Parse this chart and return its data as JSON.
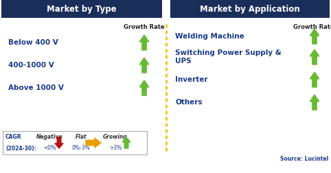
{
  "left_header": "Market by Type",
  "right_header": "Market by Application",
  "left_items": [
    "Below 400 V",
    "400-1000 V",
    "Above 1000 V"
  ],
  "right_items": [
    "Welding Machine",
    "Switching Power Supply &\nUPS",
    "Inverter",
    "Others"
  ],
  "growth_rate_label": "Growth Rate",
  "header_bg_color": "#1a2e5a",
  "header_text_color": "#ffffff",
  "item_text_color": "#1a3a8a",
  "up_arrow_color": "#66bb33",
  "down_arrow_color": "#bb1111",
  "flat_arrow_color": "#e8a000",
  "dashed_line_color": "#f5c518",
  "source_text": "Source: Lucintel",
  "source_color": "#1a3a8a",
  "legend_prefix_line1": "CAGR",
  "legend_prefix_line2": "(2024-30):",
  "neg_label": "Negative",
  "neg_sublabel": "<0%",
  "flat_label": "Flat",
  "flat_sublabel": "0%-3%",
  "grow_label": "Growing",
  "grow_sublabel": ">3%",
  "fig_width": 4.82,
  "fig_height": 2.52,
  "dpi": 100
}
